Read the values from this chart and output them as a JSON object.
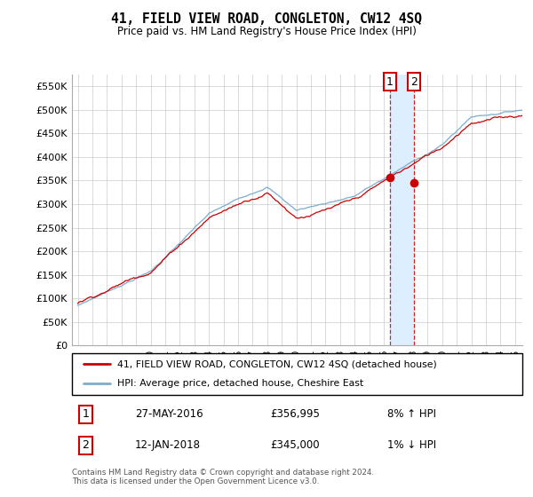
{
  "title": "41, FIELD VIEW ROAD, CONGLETON, CW12 4SQ",
  "subtitle": "Price paid vs. HM Land Registry's House Price Index (HPI)",
  "legend_line1": "41, FIELD VIEW ROAD, CONGLETON, CW12 4SQ (detached house)",
  "legend_line2": "HPI: Average price, detached house, Cheshire East",
  "transaction1_date": "27-MAY-2016",
  "transaction1_price": "£356,995",
  "transaction1_hpi": "8% ↑ HPI",
  "transaction2_date": "12-JAN-2018",
  "transaction2_price": "£345,000",
  "transaction2_hpi": "1% ↓ HPI",
  "footer": "Contains HM Land Registry data © Crown copyright and database right 2024.\nThis data is licensed under the Open Government Licence v3.0.",
  "red_color": "#cc0000",
  "blue_color": "#7aadcf",
  "shade_color": "#ddeeff",
  "ylim": [
    0,
    575000
  ],
  "yticks": [
    0,
    50000,
    100000,
    150000,
    200000,
    250000,
    300000,
    350000,
    400000,
    450000,
    500000,
    550000
  ],
  "transaction1_year": 2016.42,
  "transaction2_year": 2018.04,
  "transaction1_value": 356995,
  "transaction2_value": 345000,
  "figwidth": 6.0,
  "figheight": 5.6,
  "dpi": 100
}
